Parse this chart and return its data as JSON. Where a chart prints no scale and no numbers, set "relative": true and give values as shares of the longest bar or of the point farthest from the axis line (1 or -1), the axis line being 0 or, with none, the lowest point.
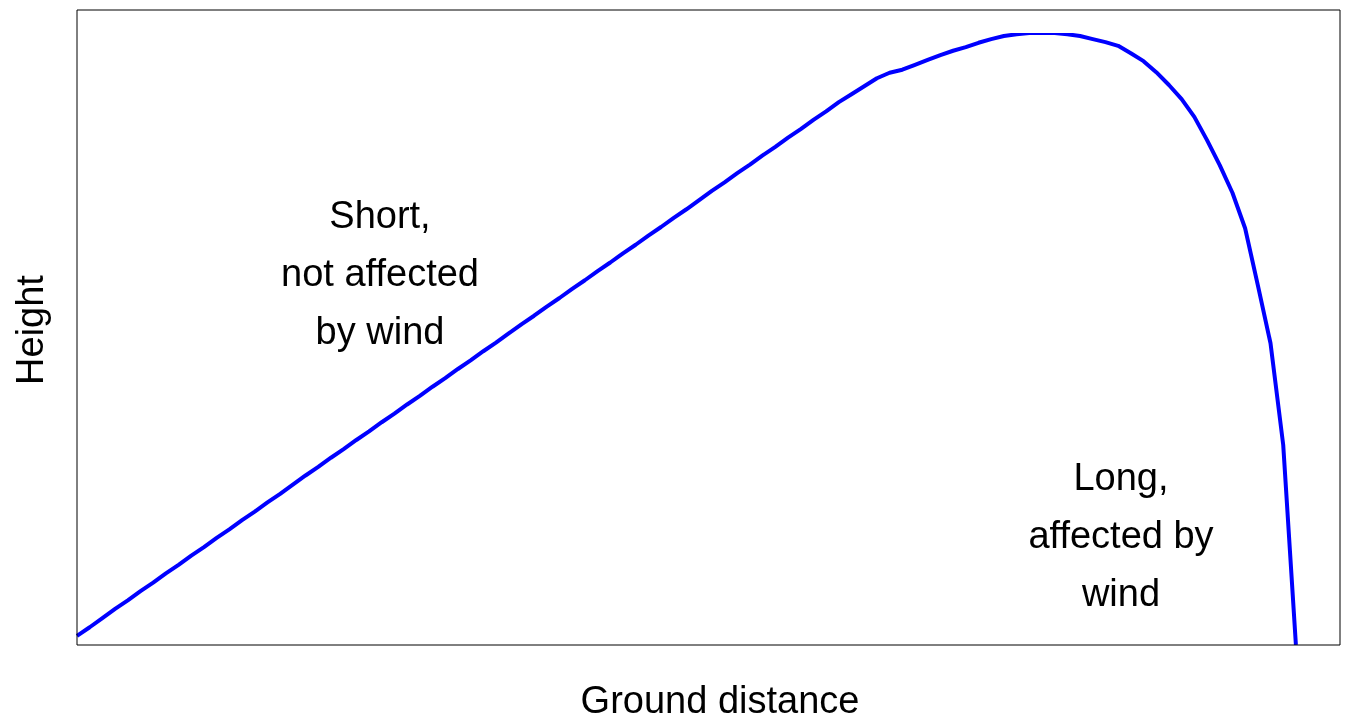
{
  "chart_data": {
    "type": "line",
    "relative": true,
    "xlabel": "Ground distance",
    "ylabel": "Height",
    "categories": [
      null,
      null,
      null,
      null,
      null,
      null,
      null,
      null,
      null,
      null,
      null,
      null,
      null,
      null,
      null,
      null,
      null,
      null,
      null,
      null,
      null,
      null,
      null,
      null,
      null,
      null,
      null,
      null,
      null,
      null,
      null,
      null,
      null,
      null,
      null,
      null,
      null,
      null,
      null,
      null,
      null,
      null,
      null,
      null,
      null,
      null,
      null,
      null,
      null,
      null,
      null,
      null,
      null,
      null,
      null,
      null,
      null,
      null,
      null,
      null,
      null,
      null,
      null,
      null,
      null,
      null,
      null,
      null,
      null,
      null,
      null,
      null,
      null,
      null,
      null,
      null,
      null,
      null,
      null,
      null,
      null,
      null,
      null,
      null,
      null,
      null,
      null,
      null,
      null,
      null,
      null,
      null,
      null,
      null,
      null,
      null,
      null,
      null,
      null,
      null
    ],
    "series": [
      {
        "color": "#0000ff",
        "values": [
          0.015,
          0.029,
          0.044,
          0.059,
          0.073,
          0.088,
          0.102,
          0.117,
          0.131,
          0.146,
          0.16,
          0.175,
          0.189,
          0.204,
          0.218,
          0.233,
          0.247,
          0.262,
          0.277,
          0.291,
          0.306,
          0.32,
          0.335,
          0.349,
          0.364,
          0.378,
          0.393,
          0.407,
          0.422,
          0.436,
          0.451,
          0.465,
          0.48,
          0.494,
          0.509,
          0.524,
          0.538,
          0.553,
          0.567,
          0.582,
          0.596,
          0.611,
          0.625,
          0.64,
          0.654,
          0.669,
          0.683,
          0.698,
          0.712,
          0.727,
          0.742,
          0.756,
          0.771,
          0.785,
          0.8,
          0.814,
          0.829,
          0.843,
          0.858,
          0.872,
          0.887,
          0.9,
          0.913,
          0.926,
          0.935,
          0.94,
          0.948,
          0.956,
          0.964,
          0.971,
          0.977,
          0.984,
          0.99,
          0.995,
          0.998,
          1,
          1,
          1,
          0.998,
          0.995,
          0.99,
          0.985,
          0.979,
          0.967,
          0.954,
          0.936,
          0.915,
          0.892,
          0.863,
          0.825,
          0.784,
          0.739,
          0.681,
          0.588,
          0.493,
          0.327,
          0,
          null,
          null,
          null
        ]
      }
    ],
    "annotations": [
      "Short,\nnot affected\nby wind",
      "Long,\naffected by\nwind"
    ]
  }
}
